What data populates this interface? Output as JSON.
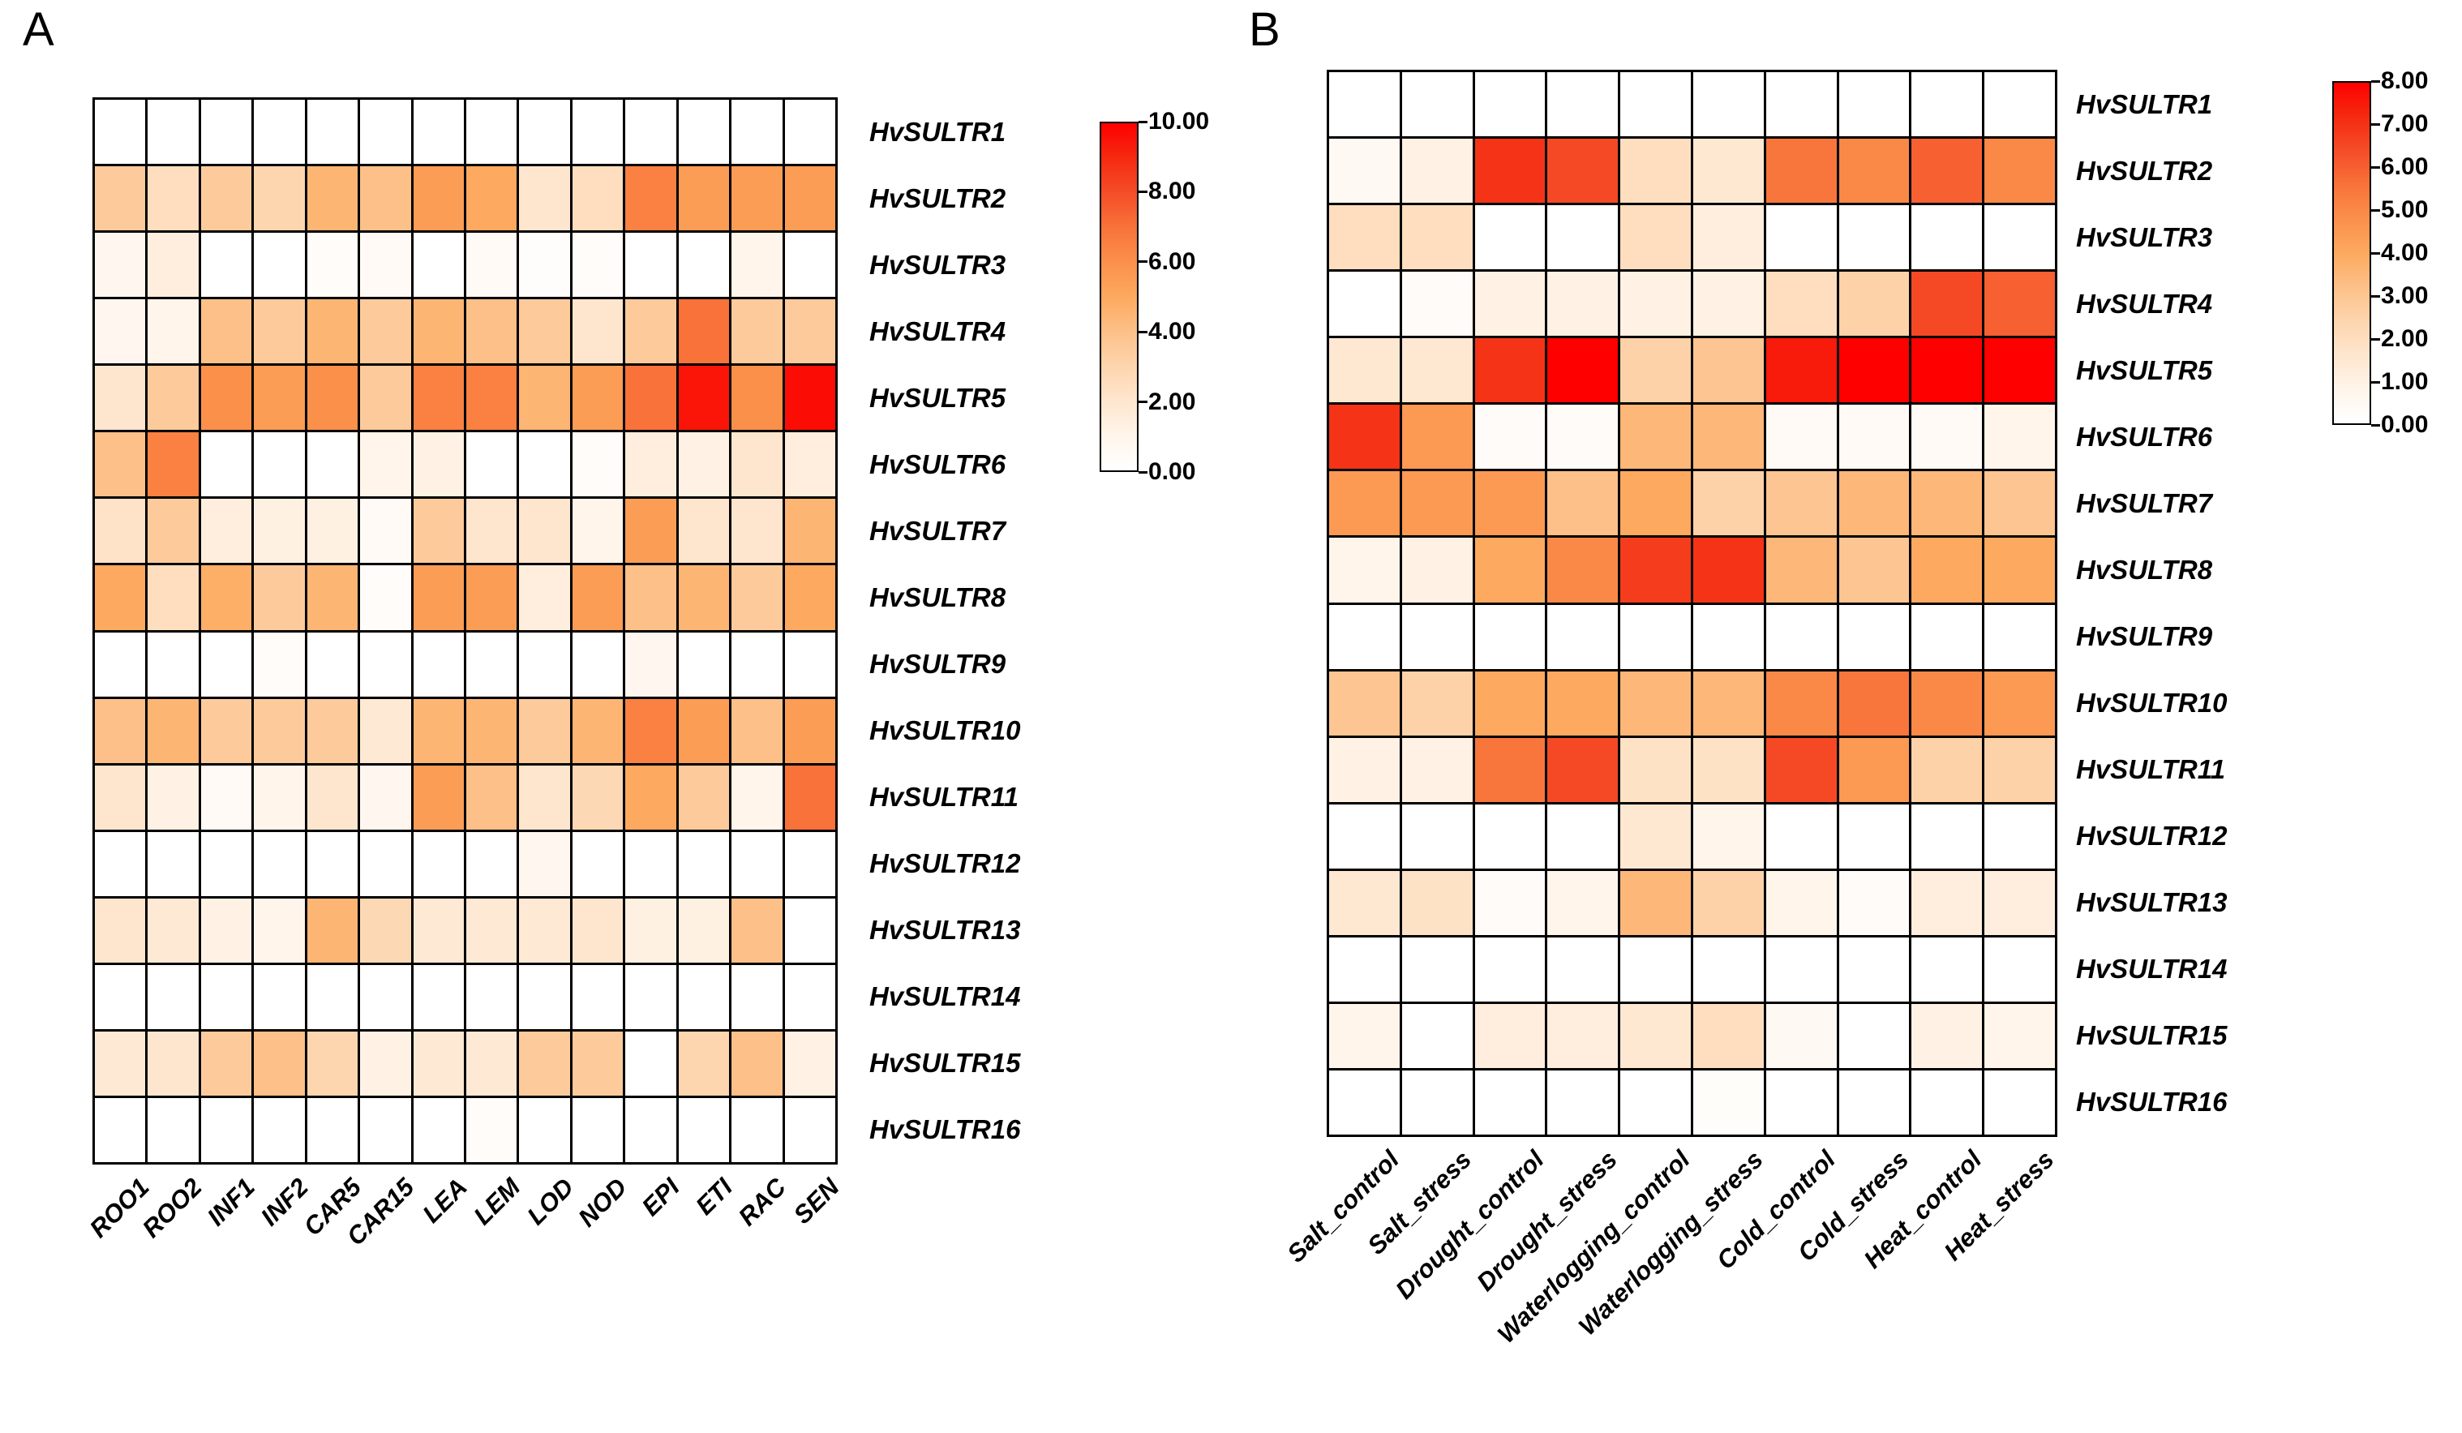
{
  "figure_title": "",
  "colormap": {
    "stops": [
      [
        0.0,
        "#FFFFFF"
      ],
      [
        0.1,
        "#FFF5EB"
      ],
      [
        0.2,
        "#FEE6CE"
      ],
      [
        0.3,
        "#FDD5AE"
      ],
      [
        0.4,
        "#FDC088"
      ],
      [
        0.5,
        "#FDA95F"
      ],
      [
        0.6,
        "#FB904B"
      ],
      [
        0.7,
        "#F87239"
      ],
      [
        0.8,
        "#F54D28"
      ],
      [
        0.9,
        "#F52A10"
      ],
      [
        1.0,
        "#FE0000"
      ]
    ],
    "grid_line_color": "#000000"
  },
  "chart_data": [
    {
      "type": "heatmap",
      "panel_label": "A",
      "title": "",
      "xlabel": "",
      "ylabel": "",
      "legend_position": "right",
      "grid": true,
      "color_scale": {
        "min": 0,
        "max": 10,
        "tick_labels": [
          "10.00",
          "8.00",
          "6.00",
          "4.00",
          "2.00",
          "0.00"
        ],
        "tick_values": [
          10,
          8,
          6,
          4,
          2,
          0
        ]
      },
      "categories": [
        "ROO1",
        "ROO2",
        "INF1",
        "INF2",
        "CAR5",
        "CAR15",
        "LEA",
        "LEM",
        "LOD",
        "NOD",
        "EPI",
        "ETI",
        "RAC",
        "SEN"
      ],
      "genes": [
        "HvSULTR1",
        "HvSULTR2",
        "HvSULTR3",
        "HvSULTR4",
        "HvSULTR5",
        "HvSULTR6",
        "HvSULTR7",
        "HvSULTR8",
        "HvSULTR9",
        "HvSULTR10",
        "HvSULTR11",
        "HvSULTR12",
        "HvSULTR13",
        "HvSULTR14",
        "HvSULTR15",
        "HvSULTR16"
      ],
      "values": [
        [
          0,
          0,
          0,
          0,
          0,
          0,
          0,
          0,
          0,
          0,
          0,
          0,
          0,
          0
        ],
        [
          3.5,
          2.5,
          3.5,
          3,
          4.5,
          4,
          5.5,
          5,
          2,
          2.5,
          6.5,
          5.5,
          5.5,
          5.5
        ],
        [
          0.8,
          1.5,
          0,
          0,
          0.3,
          0.5,
          0,
          0.5,
          0.2,
          0.3,
          0,
          0,
          1,
          0
        ],
        [
          0.8,
          1,
          4,
          3.5,
          4.5,
          3.5,
          4.5,
          4,
          3.5,
          2,
          3.5,
          7,
          3.5,
          3.5
        ],
        [
          2,
          3.5,
          6,
          5.5,
          6,
          3.5,
          6.5,
          6.5,
          4.5,
          5.5,
          7,
          9.5,
          6,
          9.7
        ],
        [
          4,
          6.5,
          0,
          0,
          0,
          1,
          1.2,
          0,
          0,
          0.3,
          1.5,
          1.2,
          2,
          1.5
        ],
        [
          2.2,
          3.5,
          1.5,
          1.3,
          1.3,
          0.5,
          3.5,
          2,
          2,
          1,
          5.5,
          2,
          2,
          4.5
        ],
        [
          5,
          2.5,
          4.8,
          3.5,
          4.5,
          0.3,
          5.5,
          5.5,
          1.5,
          5.5,
          4,
          4.5,
          3.5,
          5
        ],
        [
          0,
          0,
          0,
          0.3,
          0,
          0,
          0,
          0,
          0,
          0,
          0.8,
          0,
          0,
          0
        ],
        [
          4,
          4.5,
          3.5,
          3.5,
          3.5,
          1.8,
          4.5,
          4.5,
          3.5,
          4.5,
          6.5,
          5.5,
          4,
          5.5
        ],
        [
          2,
          1.2,
          0.5,
          1,
          2,
          0.8,
          5.5,
          4,
          2,
          2.8,
          5,
          3.5,
          1,
          7
        ],
        [
          0,
          0,
          0,
          0,
          0,
          0,
          0,
          0,
          0.8,
          0,
          0,
          0,
          0,
          0
        ],
        [
          2,
          1.8,
          1.2,
          1,
          4.5,
          2.8,
          1.8,
          1.8,
          1.8,
          2,
          1.3,
          1.3,
          4,
          0
        ],
        [
          0,
          0,
          0,
          0,
          0,
          0,
          0,
          0,
          0,
          0,
          0,
          0,
          0,
          0
        ],
        [
          1.8,
          2,
          3.5,
          4,
          3,
          1.2,
          1.8,
          1.8,
          3.5,
          3.5,
          0,
          3,
          4,
          1.2
        ],
        [
          0,
          0,
          0,
          0,
          0,
          0,
          0,
          0.3,
          0,
          0,
          0,
          0,
          0,
          0
        ]
      ]
    },
    {
      "type": "heatmap",
      "panel_label": "B",
      "title": "",
      "xlabel": "",
      "ylabel": "",
      "legend_position": "right",
      "grid": true,
      "color_scale": {
        "min": 0,
        "max": 8,
        "tick_labels": [
          "8.00",
          "7.00",
          "6.00",
          "5.00",
          "4.00",
          "3.00",
          "2.00",
          "1.00",
          "0.00"
        ],
        "tick_values": [
          8,
          7,
          6,
          5,
          4,
          3,
          2,
          1,
          0
        ]
      },
      "categories": [
        "Salt_control",
        "Salt_stress",
        "Drought_control",
        "Drought_stress",
        "Waterlogging_control",
        "Waterlogging_stress",
        "Cold_control",
        "Cold_stress",
        "Heat_control",
        "Heat_stress"
      ],
      "genes": [
        "HvSULTR1",
        "HvSULTR2",
        "HvSULTR3",
        "HvSULTR4",
        "HvSULTR5",
        "HvSULTR6",
        "HvSULTR7",
        "HvSULTR8",
        "HvSULTR9",
        "HvSULTR10",
        "HvSULTR11",
        "HvSULTR12",
        "HvSULTR13",
        "HvSULTR14",
        "HvSULTR15",
        "HvSULTR16"
      ],
      "values": [
        [
          0,
          0,
          0,
          0,
          0,
          0,
          0,
          0,
          0,
          0
        ],
        [
          0.5,
          1,
          7,
          6.5,
          2,
          1.5,
          5.5,
          5,
          6,
          5
        ],
        [
          2,
          2,
          0,
          0,
          2,
          1.2,
          0,
          0,
          0,
          0
        ],
        [
          0,
          0.3,
          1,
          1,
          1,
          1,
          2,
          2.5,
          6.5,
          6
        ],
        [
          1.5,
          1.5,
          7,
          8,
          2.5,
          3,
          7.5,
          8,
          8,
          8
        ],
        [
          7,
          4.5,
          0.3,
          0.3,
          3.5,
          3.5,
          0.4,
          0.4,
          0.4,
          0.8
        ],
        [
          4.5,
          4.5,
          4.5,
          3.2,
          4,
          2.5,
          3,
          3.5,
          3.5,
          3
        ],
        [
          0.8,
          1,
          4,
          5,
          6.8,
          7,
          3.5,
          3,
          4,
          4
        ],
        [
          0,
          0,
          0,
          0,
          0,
          0,
          0,
          0,
          0,
          0
        ],
        [
          3,
          2.5,
          4,
          4,
          3.5,
          3.5,
          5,
          5.5,
          5,
          4.5
        ],
        [
          1,
          1,
          5.5,
          6.5,
          1.8,
          1.8,
          6.5,
          4.5,
          2.5,
          2.5
        ],
        [
          0,
          0,
          0,
          0,
          1.5,
          0.8,
          0,
          0,
          0,
          0
        ],
        [
          1.5,
          1.8,
          0.3,
          0.8,
          3.5,
          2.5,
          0.8,
          0.3,
          1.2,
          1.2
        ],
        [
          0,
          0,
          0,
          0,
          0,
          0,
          0,
          0,
          0,
          0
        ],
        [
          0.8,
          0,
          1.2,
          1.2,
          1.5,
          2,
          0.5,
          0,
          1,
          0.8
        ],
        [
          0,
          0,
          0,
          0,
          0,
          0.2,
          0,
          0,
          0,
          0
        ]
      ]
    }
  ]
}
